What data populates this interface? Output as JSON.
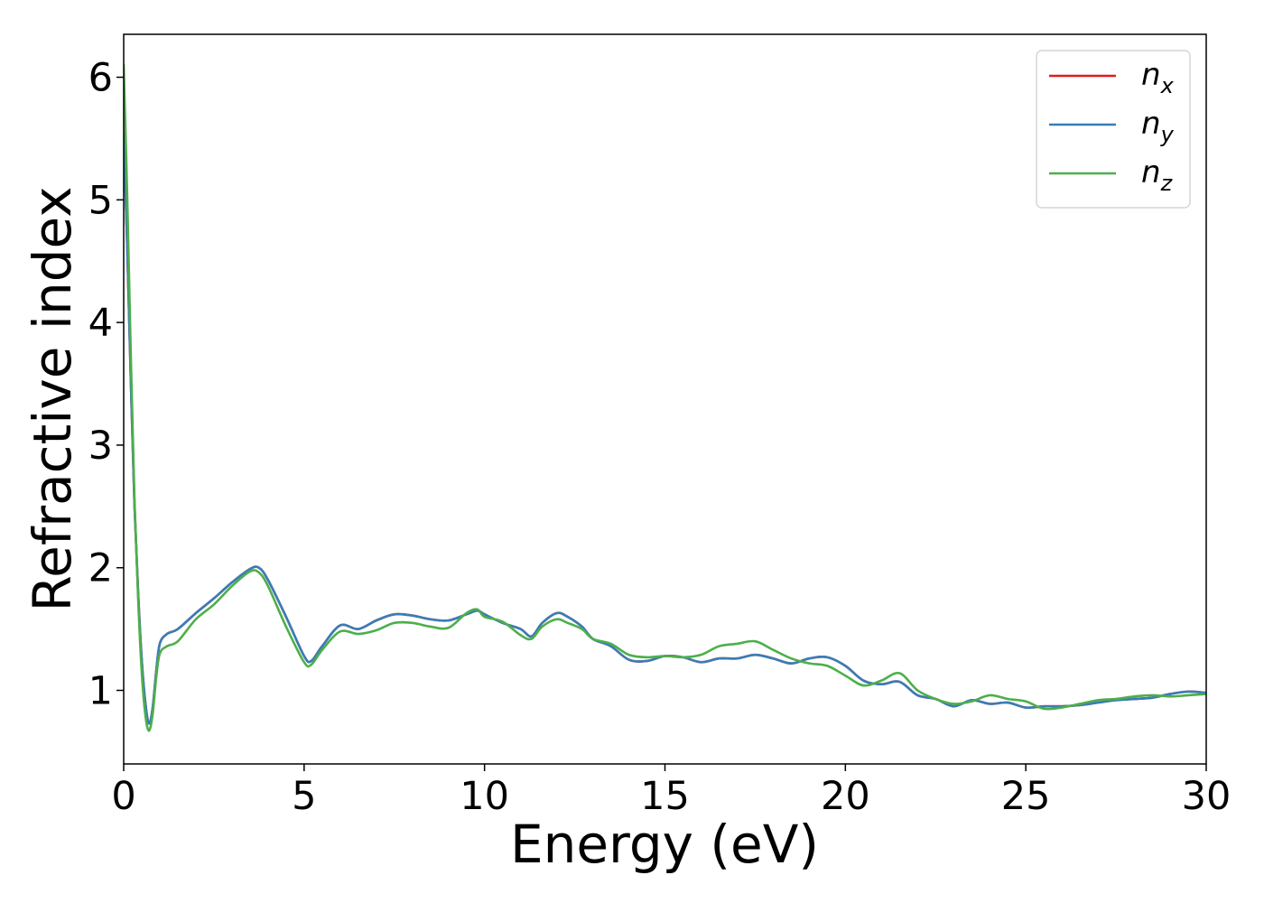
{
  "chart_data": {
    "type": "line",
    "title": "",
    "xlabel": "Energy (eV)",
    "ylabel": "Refractive index",
    "xlim": [
      0,
      30
    ],
    "ylim": [
      0.4,
      6.35
    ],
    "xticks": [
      0,
      5,
      10,
      15,
      20,
      25,
      30
    ],
    "yticks": [
      1,
      2,
      3,
      4,
      5,
      6
    ],
    "xtick_labels": [
      "0",
      "5",
      "10",
      "15",
      "20",
      "25",
      "30"
    ],
    "ytick_labels": [
      "1",
      "2",
      "3",
      "4",
      "5",
      "6"
    ],
    "grid": false,
    "legend_position": "top-right",
    "series": [
      {
        "name": "n_x",
        "label_main": "n",
        "label_sub": "x",
        "color": "#e41a1c",
        "x": [
          0,
          0.1,
          0.2,
          0.3,
          0.4,
          0.5,
          0.6,
          0.7,
          0.8,
          0.9,
          1.0,
          1.2,
          1.5,
          2.0,
          2.5,
          3.0,
          3.5,
          3.75,
          4.0,
          4.5,
          5.0,
          5.2,
          5.5,
          6.0,
          6.5,
          7.0,
          7.5,
          8.0,
          8.5,
          9.0,
          9.5,
          9.8,
          10.0,
          10.5,
          11.0,
          11.3,
          11.6,
          12.0,
          12.3,
          12.7,
          13.0,
          13.5,
          14.0,
          14.5,
          15.0,
          15.5,
          16.0,
          16.5,
          17.0,
          17.5,
          18.0,
          18.5,
          19.0,
          19.5,
          20.0,
          20.5,
          21.0,
          21.5,
          22.0,
          22.5,
          23.0,
          23.5,
          24.0,
          24.5,
          25.0,
          25.5,
          26.0,
          26.5,
          27.0,
          27.5,
          28.0,
          28.5,
          29.0,
          29.5,
          30.0
        ],
        "y": [
          5.55,
          4.6,
          3.5,
          2.5,
          1.8,
          1.25,
          0.9,
          0.73,
          0.85,
          1.15,
          1.38,
          1.46,
          1.5,
          1.63,
          1.75,
          1.88,
          1.99,
          2.0,
          1.9,
          1.6,
          1.28,
          1.24,
          1.36,
          1.53,
          1.5,
          1.57,
          1.62,
          1.61,
          1.58,
          1.57,
          1.62,
          1.65,
          1.62,
          1.55,
          1.5,
          1.44,
          1.55,
          1.63,
          1.6,
          1.52,
          1.42,
          1.36,
          1.25,
          1.24,
          1.28,
          1.27,
          1.23,
          1.26,
          1.26,
          1.29,
          1.26,
          1.22,
          1.26,
          1.27,
          1.2,
          1.08,
          1.05,
          1.07,
          0.96,
          0.93,
          0.87,
          0.92,
          0.89,
          0.9,
          0.86,
          0.87,
          0.87,
          0.88,
          0.9,
          0.92,
          0.93,
          0.94,
          0.97,
          0.99,
          0.98
        ]
      },
      {
        "name": "n_y",
        "label_main": "n",
        "label_sub": "y",
        "color": "#377eb8",
        "x": [
          0,
          0.1,
          0.2,
          0.3,
          0.4,
          0.5,
          0.6,
          0.7,
          0.8,
          0.9,
          1.0,
          1.2,
          1.5,
          2.0,
          2.5,
          3.0,
          3.5,
          3.75,
          4.0,
          4.5,
          5.0,
          5.2,
          5.5,
          6.0,
          6.5,
          7.0,
          7.5,
          8.0,
          8.5,
          9.0,
          9.5,
          9.8,
          10.0,
          10.5,
          11.0,
          11.3,
          11.6,
          12.0,
          12.3,
          12.7,
          13.0,
          13.5,
          14.0,
          14.5,
          15.0,
          15.5,
          16.0,
          16.5,
          17.0,
          17.5,
          18.0,
          18.5,
          19.0,
          19.5,
          20.0,
          20.5,
          21.0,
          21.5,
          22.0,
          22.5,
          23.0,
          23.5,
          24.0,
          24.5,
          25.0,
          25.5,
          26.0,
          26.5,
          27.0,
          27.5,
          28.0,
          28.5,
          29.0,
          29.5,
          30.0
        ],
        "y": [
          5.55,
          4.6,
          3.5,
          2.5,
          1.8,
          1.25,
          0.9,
          0.73,
          0.85,
          1.15,
          1.38,
          1.46,
          1.5,
          1.63,
          1.75,
          1.88,
          1.99,
          2.0,
          1.9,
          1.6,
          1.28,
          1.24,
          1.36,
          1.53,
          1.5,
          1.57,
          1.62,
          1.61,
          1.58,
          1.57,
          1.62,
          1.65,
          1.62,
          1.55,
          1.5,
          1.44,
          1.55,
          1.63,
          1.6,
          1.52,
          1.42,
          1.36,
          1.25,
          1.24,
          1.28,
          1.27,
          1.23,
          1.26,
          1.26,
          1.29,
          1.26,
          1.22,
          1.26,
          1.27,
          1.2,
          1.08,
          1.05,
          1.07,
          0.96,
          0.93,
          0.87,
          0.92,
          0.89,
          0.9,
          0.86,
          0.87,
          0.87,
          0.88,
          0.9,
          0.92,
          0.93,
          0.94,
          0.97,
          0.99,
          0.98
        ]
      },
      {
        "name": "n_z",
        "label_main": "n",
        "label_sub": "z",
        "color": "#4daf4a",
        "x": [
          0,
          0.1,
          0.2,
          0.3,
          0.4,
          0.5,
          0.6,
          0.7,
          0.8,
          0.9,
          1.0,
          1.2,
          1.5,
          2.0,
          2.5,
          3.0,
          3.5,
          3.75,
          4.0,
          4.5,
          5.0,
          5.2,
          5.5,
          6.0,
          6.5,
          7.0,
          7.5,
          8.0,
          8.5,
          9.0,
          9.5,
          9.8,
          10.0,
          10.5,
          11.0,
          11.3,
          11.6,
          12.0,
          12.3,
          12.7,
          13.0,
          13.5,
          14.0,
          14.5,
          15.0,
          15.5,
          16.0,
          16.5,
          17.0,
          17.5,
          18.0,
          18.5,
          19.0,
          19.5,
          20.0,
          20.5,
          21.0,
          21.5,
          22.0,
          22.5,
          23.0,
          23.5,
          24.0,
          24.5,
          25.0,
          25.5,
          26.0,
          26.5,
          27.0,
          27.5,
          28.0,
          28.5,
          29.0,
          29.5,
          30.0
        ],
        "y": [
          6.1,
          5.0,
          3.7,
          2.55,
          1.75,
          1.15,
          0.8,
          0.67,
          0.8,
          1.1,
          1.3,
          1.36,
          1.4,
          1.58,
          1.7,
          1.85,
          1.97,
          1.96,
          1.85,
          1.52,
          1.23,
          1.21,
          1.33,
          1.48,
          1.46,
          1.49,
          1.55,
          1.55,
          1.52,
          1.51,
          1.63,
          1.66,
          1.6,
          1.56,
          1.45,
          1.42,
          1.52,
          1.58,
          1.55,
          1.5,
          1.42,
          1.38,
          1.29,
          1.27,
          1.28,
          1.27,
          1.29,
          1.36,
          1.38,
          1.4,
          1.33,
          1.26,
          1.22,
          1.2,
          1.12,
          1.04,
          1.08,
          1.14,
          1.0,
          0.93,
          0.89,
          0.91,
          0.96,
          0.93,
          0.91,
          0.85,
          0.86,
          0.89,
          0.92,
          0.93,
          0.95,
          0.96,
          0.95,
          0.96,
          0.97
        ]
      }
    ]
  }
}
